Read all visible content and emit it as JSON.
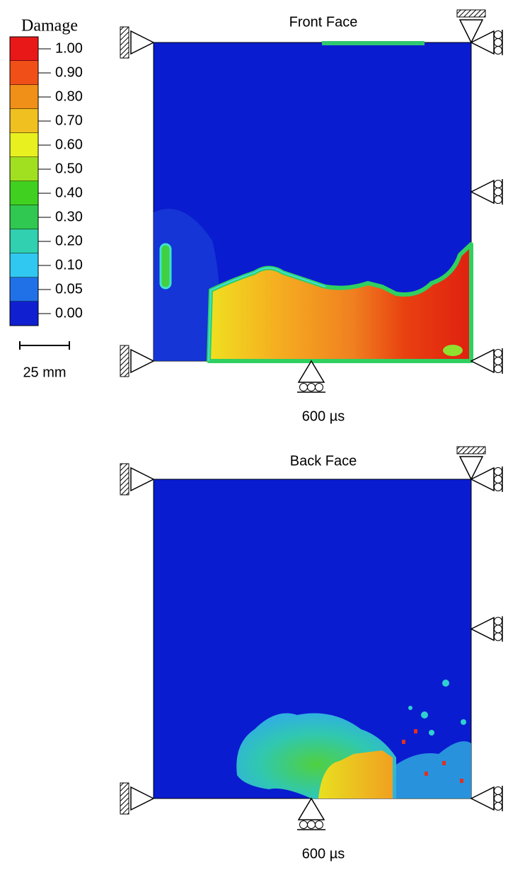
{
  "legend": {
    "title": "Damage",
    "labels": [
      "1.00",
      "0.90",
      "0.80",
      "0.70",
      "0.60",
      "0.50",
      "0.40",
      "0.30",
      "0.20",
      "0.10",
      "0.05",
      "0.00"
    ]
  },
  "scale_bar": {
    "label": "25 mm"
  },
  "panels": [
    {
      "title": "Front Face",
      "time": "600 µs"
    },
    {
      "title": "Back Face",
      "time": "600 µs"
    }
  ]
}
